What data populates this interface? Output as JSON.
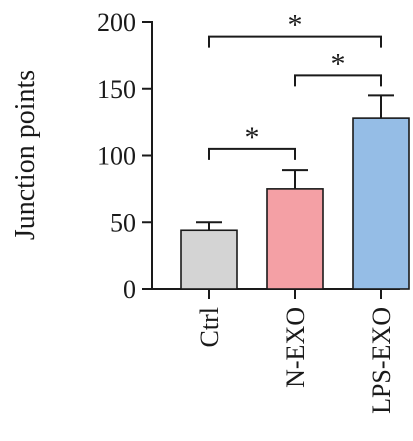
{
  "chart_data": {
    "type": "bar",
    "title": "",
    "ylabel": "Junction points",
    "xlabel": "",
    "ylim": [
      0,
      200
    ],
    "yticks": [
      0,
      50,
      100,
      150,
      200
    ],
    "categories": [
      "Ctrl",
      "N-EXO",
      "LPS-EXO"
    ],
    "values": [
      44,
      75,
      128
    ],
    "errors": [
      6,
      14,
      17
    ],
    "colors": [
      "#d4d4d4",
      "#f4a0a5",
      "#95bde6"
    ],
    "grid": false,
    "legend": "none",
    "significance": [
      {
        "from": "Ctrl",
        "to": "N-EXO",
        "label": "*"
      },
      {
        "from": "N-EXO",
        "to": "LPS-EXO",
        "label": "*"
      },
      {
        "from": "Ctrl",
        "to": "LPS-EXO",
        "label": "*"
      }
    ]
  }
}
